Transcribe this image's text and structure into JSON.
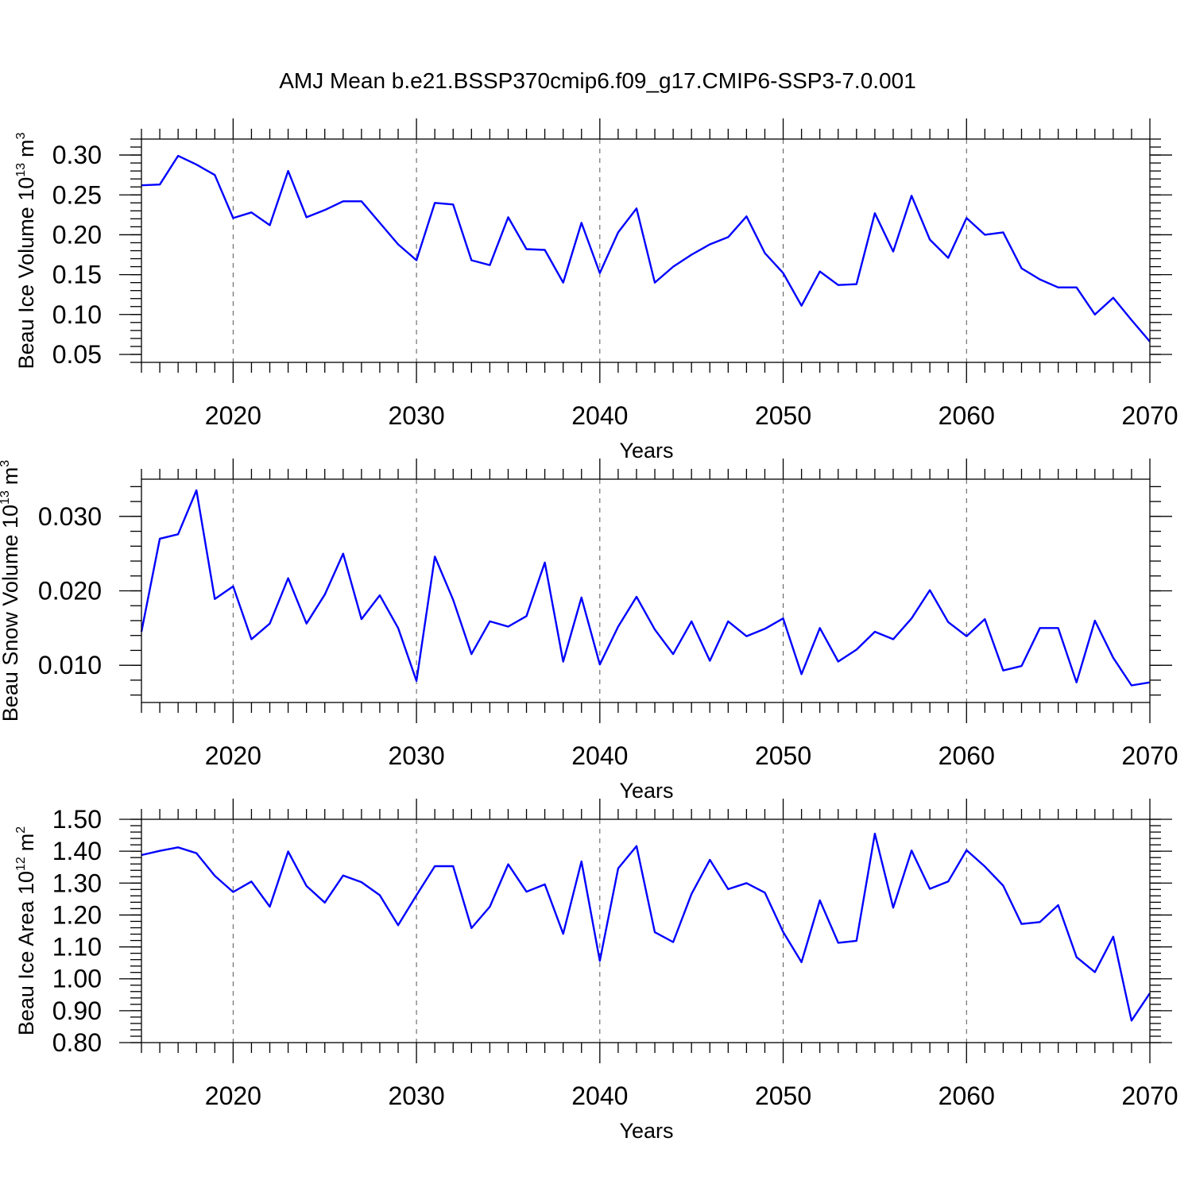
{
  "title": "AMJ Mean b.e21.BSSP370cmip6.f09_g17.CMIP6-SSP3-7.0.001",
  "colors": {
    "line": "#0000ff",
    "frame": "#000000",
    "grid": "#555555"
  },
  "chart_data": [
    {
      "type": "line",
      "ylabel_main": "Beau Ice Volume 10",
      "ylabel_exp": "13",
      "ylabel_unit": "m",
      "ylabel_unit_exp": "3",
      "xlabel": "Years",
      "xlim": [
        2015,
        2070
      ],
      "ylim": [
        0.04,
        0.32
      ],
      "xticks": [
        "2020",
        "2030",
        "2040",
        "2050",
        "2060",
        "2070"
      ],
      "yticks": [
        "0.05",
        "0.10",
        "0.15",
        "0.20",
        "0.25",
        "0.30"
      ],
      "grid": "vertical dashed at major x ticks",
      "x": [
        2015,
        2016,
        2017,
        2018,
        2019,
        2020,
        2021,
        2022,
        2023,
        2024,
        2025,
        2026,
        2027,
        2028,
        2029,
        2030,
        2031,
        2032,
        2033,
        2034,
        2035,
        2036,
        2037,
        2038,
        2039,
        2040,
        2041,
        2042,
        2043,
        2044,
        2045,
        2046,
        2047,
        2048,
        2049,
        2050,
        2051,
        2052,
        2053,
        2054,
        2055,
        2056,
        2057,
        2058,
        2059,
        2060,
        2061,
        2062,
        2063,
        2064,
        2065,
        2066,
        2067,
        2068,
        2069,
        2070
      ],
      "values": [
        0.262,
        0.263,
        0.299,
        0.288,
        0.275,
        0.221,
        0.228,
        0.212,
        0.28,
        0.222,
        0.231,
        0.242,
        0.242,
        0.215,
        0.188,
        0.168,
        0.24,
        0.238,
        0.168,
        0.162,
        0.222,
        0.182,
        0.181,
        0.14,
        0.215,
        0.152,
        0.203,
        0.233,
        0.14,
        0.16,
        0.175,
        0.188,
        0.197,
        0.223,
        0.177,
        0.152,
        0.111,
        0.154,
        0.137,
        0.138,
        0.227,
        0.179,
        0.249,
        0.194,
        0.171,
        0.221,
        0.2,
        0.203,
        0.158,
        0.144,
        0.134,
        0.134,
        0.1,
        0.121,
        0.093,
        0.066
      ]
    },
    {
      "type": "line",
      "ylabel_main": "Beau Snow Volume 10",
      "ylabel_exp": "13",
      "ylabel_unit": "m",
      "ylabel_unit_exp": "3",
      "xlabel": "Years",
      "xlim": [
        2015,
        2070
      ],
      "ylim": [
        0.005,
        0.035
      ],
      "xticks": [
        "2020",
        "2030",
        "2040",
        "2050",
        "2060",
        "2070"
      ],
      "yticks": [
        "0.010",
        "0.020",
        "0.030"
      ],
      "grid": "vertical dashed at major x ticks",
      "x": [
        2015,
        2016,
        2017,
        2018,
        2019,
        2020,
        2021,
        2022,
        2023,
        2024,
        2025,
        2026,
        2027,
        2028,
        2029,
        2030,
        2031,
        2032,
        2033,
        2034,
        2035,
        2036,
        2037,
        2038,
        2039,
        2040,
        2041,
        2042,
        2043,
        2044,
        2045,
        2046,
        2047,
        2048,
        2049,
        2050,
        2051,
        2052,
        2053,
        2054,
        2055,
        2056,
        2057,
        2058,
        2059,
        2060,
        2061,
        2062,
        2063,
        2064,
        2065,
        2066,
        2067,
        2068,
        2069,
        2070
      ],
      "values": [
        0.0145,
        0.027,
        0.0276,
        0.0335,
        0.0189,
        0.0206,
        0.0135,
        0.0156,
        0.0217,
        0.0156,
        0.0195,
        0.025,
        0.0162,
        0.0194,
        0.015,
        0.0079,
        0.0246,
        0.0188,
        0.0115,
        0.0159,
        0.0152,
        0.0166,
        0.0238,
        0.0105,
        0.0191,
        0.0101,
        0.0152,
        0.0192,
        0.0148,
        0.0115,
        0.0159,
        0.0106,
        0.0159,
        0.0139,
        0.0149,
        0.0163,
        0.0088,
        0.015,
        0.0105,
        0.0121,
        0.0145,
        0.0135,
        0.0163,
        0.0201,
        0.0158,
        0.0139,
        0.0162,
        0.0093,
        0.0099,
        0.015,
        0.015,
        0.0077,
        0.016,
        0.011,
        0.0073,
        0.0077
      ]
    },
    {
      "type": "line",
      "ylabel_main": "Beau Ice Area 10",
      "ylabel_exp": "12",
      "ylabel_unit": "m",
      "ylabel_unit_exp": "2",
      "xlabel": "Years",
      "xlim": [
        2015,
        2070
      ],
      "ylim": [
        0.8,
        1.5
      ],
      "xticks": [
        "2020",
        "2030",
        "2040",
        "2050",
        "2060",
        "2070"
      ],
      "yticks": [
        "0.80",
        "0.90",
        "1.00",
        "1.10",
        "1.20",
        "1.30",
        "1.40",
        "1.50"
      ],
      "grid": "vertical dashed at major x ticks",
      "x": [
        2015,
        2016,
        2017,
        2018,
        2019,
        2020,
        2021,
        2022,
        2023,
        2024,
        2025,
        2026,
        2027,
        2028,
        2029,
        2030,
        2031,
        2032,
        2033,
        2034,
        2035,
        2036,
        2037,
        2038,
        2039,
        2040,
        2041,
        2042,
        2043,
        2044,
        2045,
        2046,
        2047,
        2048,
        2049,
        2050,
        2051,
        2052,
        2053,
        2054,
        2055,
        2056,
        2057,
        2058,
        2059,
        2060,
        2061,
        2062,
        2063,
        2064,
        2065,
        2066,
        2067,
        2068,
        2069,
        2070
      ],
      "values": [
        1.388,
        1.401,
        1.412,
        1.394,
        1.323,
        1.272,
        1.305,
        1.226,
        1.399,
        1.291,
        1.239,
        1.324,
        1.303,
        1.262,
        1.168,
        1.262,
        1.353,
        1.353,
        1.159,
        1.226,
        1.359,
        1.273,
        1.296,
        1.141,
        1.368,
        1.056,
        1.346,
        1.416,
        1.146,
        1.115,
        1.266,
        1.373,
        1.281,
        1.3,
        1.27,
        1.147,
        1.052,
        1.246,
        1.113,
        1.119,
        1.455,
        1.223,
        1.402,
        1.282,
        1.305,
        1.403,
        1.352,
        1.292,
        1.172,
        1.178,
        1.231,
        1.068,
        1.021,
        1.132,
        0.869,
        0.955
      ]
    }
  ]
}
